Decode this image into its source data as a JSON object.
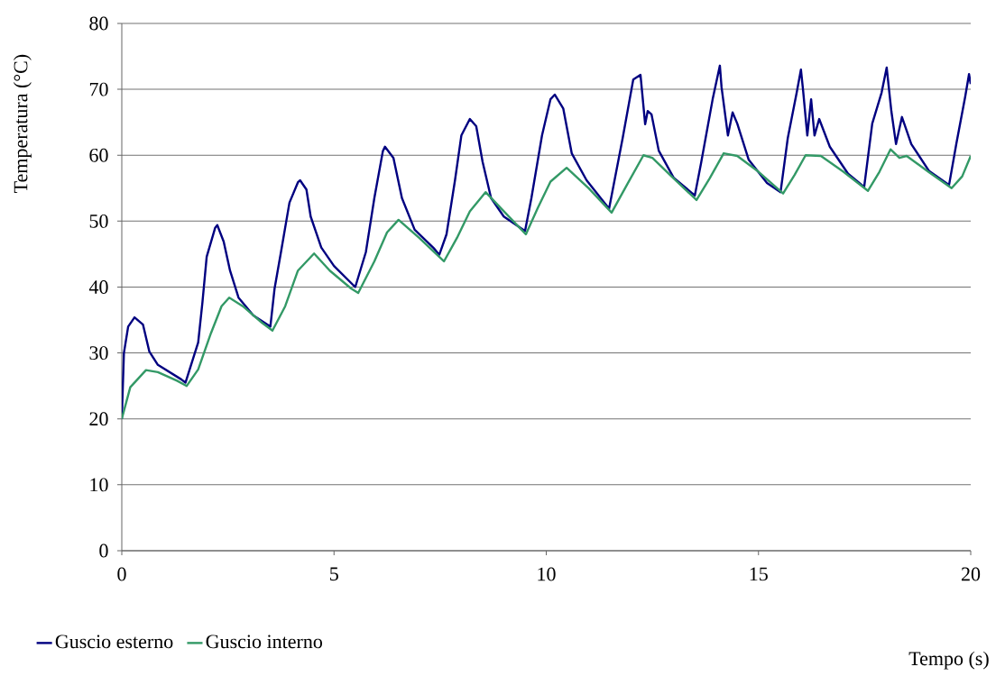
{
  "chart_data": {
    "type": "line",
    "xlabel": "Tempo (s)",
    "ylabel": "Temperatura (°C)",
    "xlim": [
      0,
      20
    ],
    "xticks": [
      0,
      5,
      10,
      15,
      20
    ],
    "ylim": [
      0,
      80
    ],
    "yticks": [
      0,
      10,
      20,
      30,
      40,
      50,
      60,
      70,
      80
    ],
    "grid": "y",
    "legend": "bottom",
    "marker": "none",
    "line_style": "solid",
    "series": [
      {
        "name": "Guscio esterno",
        "color": "#000080",
        "x": [
          0,
          0.05,
          0.15,
          0.3,
          0.5,
          0.65,
          0.85,
          1.4,
          1.5,
          1.8,
          1.9,
          2.0,
          2.2,
          2.25,
          2.4,
          2.55,
          2.75,
          3.1,
          3.5,
          3.6,
          3.75,
          3.95,
          4.15,
          4.2,
          4.35,
          4.45,
          4.7,
          5.0,
          5.5,
          5.75,
          5.95,
          6.15,
          6.2,
          6.4,
          6.6,
          6.9,
          7.35,
          7.48,
          7.65,
          7.85,
          8.0,
          8.2,
          8.35,
          8.5,
          8.7,
          9.0,
          9.5,
          9.65,
          9.9,
          10.1,
          10.2,
          10.4,
          10.6,
          10.95,
          11.48,
          11.8,
          12.05,
          12.22,
          12.26,
          12.33,
          12.39,
          12.48,
          12.65,
          13.0,
          13.5,
          13.65,
          13.92,
          14.09,
          14.13,
          14.28,
          14.39,
          14.5,
          14.77,
          15.2,
          15.52,
          15.69,
          15.9,
          16.0,
          16.05,
          16.15,
          16.24,
          16.32,
          16.43,
          16.68,
          17.11,
          17.49,
          17.68,
          17.9,
          18.02,
          18.13,
          18.24,
          18.38,
          18.6,
          19.02,
          19.49,
          19.66,
          19.87,
          19.96,
          20.0
        ],
        "values": [
          20,
          30,
          34,
          35.4,
          34.3,
          30.2,
          28.2,
          26,
          25.5,
          31.6,
          37.7,
          44.6,
          49,
          49.4,
          46.9,
          42.5,
          38.4,
          35.7,
          34,
          39.8,
          45.3,
          52.8,
          55.9,
          56.2,
          54.8,
          50.7,
          46,
          43.2,
          40,
          45.3,
          53.5,
          60.6,
          61.3,
          59.6,
          53.5,
          48.7,
          45.9,
          44.9,
          48,
          56.2,
          63,
          65.5,
          64.4,
          59,
          53.5,
          50.7,
          48.5,
          53.5,
          63,
          68.5,
          69.2,
          67.1,
          60.3,
          56.2,
          51.9,
          62.6,
          71.5,
          72.2,
          69.5,
          64.7,
          66.7,
          66.2,
          60.7,
          56.6,
          53.9,
          58.9,
          68.5,
          73.6,
          70.3,
          63,
          66.5,
          64.8,
          59.3,
          55.8,
          54.4,
          62.6,
          69.5,
          73,
          69.9,
          63,
          68.5,
          63,
          65.5,
          61.3,
          57.2,
          55.2,
          64.8,
          69.5,
          73.3,
          66.7,
          61.7,
          65.8,
          61.7,
          57.6,
          55.5,
          61.7,
          68.9,
          72.3,
          70.8
        ]
      },
      {
        "name": "Guscio interno",
        "color": "#339966",
        "x": [
          0,
          0.2,
          0.57,
          0.85,
          1.3,
          1.53,
          1.8,
          2.1,
          2.35,
          2.53,
          2.85,
          3.3,
          3.55,
          3.85,
          4.15,
          4.53,
          4.9,
          5.4,
          5.57,
          5.95,
          6.25,
          6.52,
          7.0,
          7.59,
          7.9,
          8.2,
          8.57,
          9.0,
          9.52,
          9.8,
          10.1,
          10.48,
          11.0,
          11.54,
          11.9,
          12.29,
          12.5,
          13.0,
          13.54,
          13.85,
          14.18,
          14.5,
          15.0,
          15.58,
          15.85,
          16.11,
          16.47,
          17.0,
          17.58,
          17.85,
          18.11,
          18.32,
          18.49,
          19.0,
          19.55,
          19.8,
          20.0
        ],
        "values": [
          20,
          24.8,
          27.4,
          27.1,
          25.8,
          25.0,
          27.5,
          33,
          37.1,
          38.4,
          37.1,
          34.6,
          33.4,
          37.1,
          42.5,
          45.1,
          42.5,
          39.8,
          39.1,
          43.9,
          48.3,
          50.2,
          47.5,
          43.9,
          47.5,
          51.5,
          54.4,
          51.5,
          48,
          52,
          56,
          58.1,
          55,
          51.3,
          55.5,
          60,
          59.6,
          56.5,
          53.2,
          56.5,
          60.3,
          59.9,
          57.5,
          54.2,
          57,
          60,
          59.9,
          57.5,
          54.6,
          57.5,
          60.9,
          59.6,
          59.9,
          57.5,
          55,
          56.8,
          59.9
        ]
      }
    ]
  }
}
